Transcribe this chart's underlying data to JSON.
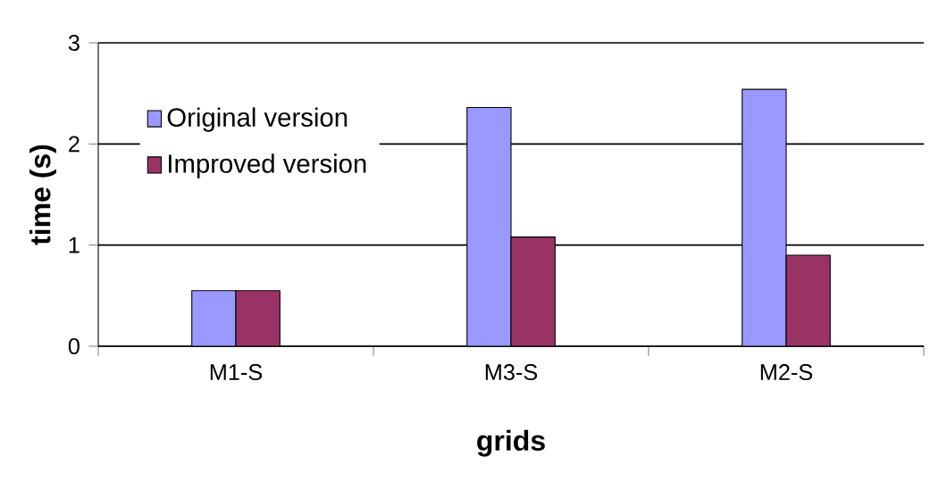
{
  "chart_data": {
    "type": "bar",
    "xlabel": "grids",
    "ylabel": "time (s)",
    "categories": [
      "M1-S",
      "M3-S",
      "M2-S"
    ],
    "series": [
      {
        "name": "Original version",
        "color": "#9999ff",
        "values": [
          0.55,
          2.36,
          2.54
        ]
      },
      {
        "name": "Improved version",
        "color": "#993366",
        "values": [
          0.55,
          1.08,
          0.9
        ]
      }
    ],
    "ylim": [
      0,
      3
    ],
    "yticks": [
      0,
      1,
      2,
      3
    ],
    "grid": "y",
    "legend": "top left"
  }
}
